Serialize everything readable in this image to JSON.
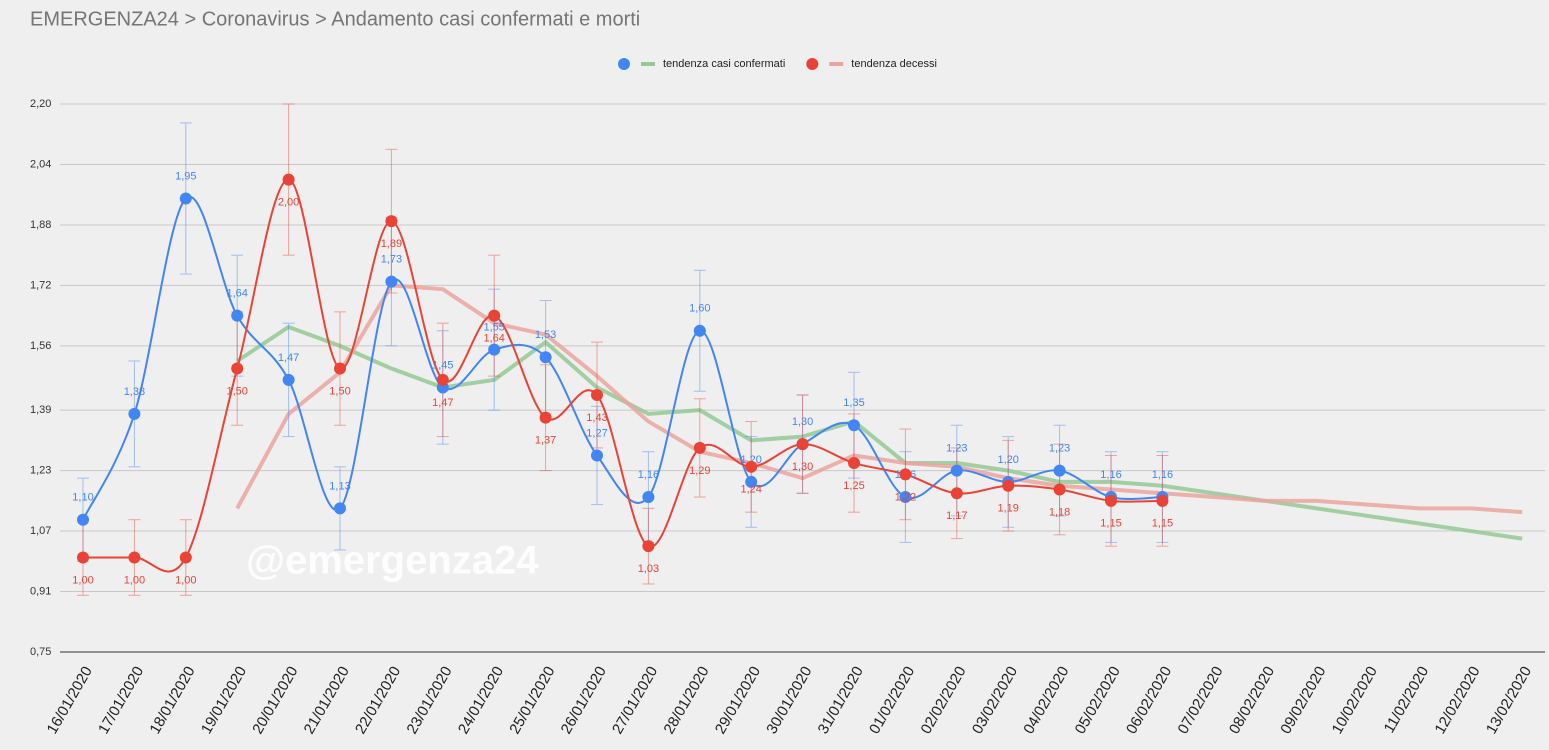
{
  "chart_data": {
    "type": "line",
    "title": "EMERGENZA24 > Coronavirus > Andamento casi confermati e morti",
    "watermark": "@emergenza24",
    "categories": [
      "16/01/2020",
      "17/01/2020",
      "18/01/2020",
      "19/01/2020",
      "20/01/2020",
      "21/01/2020",
      "22/01/2020",
      "23/01/2020",
      "24/01/2020",
      "25/01/2020",
      "26/01/2020",
      "27/01/2020",
      "28/01/2020",
      "29/01/2020",
      "30/01/2020",
      "31/01/2020",
      "01/02/2020",
      "02/02/2020",
      "03/02/2020",
      "04/02/2020",
      "05/02/2020",
      "06/02/2020",
      "07/02/2020",
      "08/02/2020",
      "09/02/2020",
      "10/02/2020",
      "11/02/2020",
      "12/02/2020",
      "13/02/2020"
    ],
    "ylim": [
      0.75,
      2.2
    ],
    "yticks": [
      {
        "value": 0.75,
        "label": "0,75"
      },
      {
        "value": 0.91,
        "label": "0,91"
      },
      {
        "value": 1.07,
        "label": "1,07"
      },
      {
        "value": 1.23,
        "label": "1,23"
      },
      {
        "value": 1.39,
        "label": "1,39"
      },
      {
        "value": 1.56,
        "label": "1,56"
      },
      {
        "value": 1.72,
        "label": "1,72"
      },
      {
        "value": 1.88,
        "label": "1,88"
      },
      {
        "value": 2.04,
        "label": "2,04"
      },
      {
        "value": 2.2,
        "label": "2,20"
      }
    ],
    "grid": true,
    "legend": "top",
    "series": [
      {
        "color": "#4285f4",
        "style": "points",
        "values": [
          1.1,
          1.38,
          1.95,
          1.64,
          1.47,
          1.13,
          1.73,
          1.45,
          1.55,
          1.53,
          1.27,
          1.16,
          1.6,
          1.2,
          1.3,
          1.35,
          1.16,
          1.23,
          1.2,
          1.23,
          1.16,
          1.16,
          null,
          null,
          null,
          null,
          null,
          null,
          null
        ],
        "value_labels": [
          "1,10",
          "1,38",
          "1,95",
          "1,64",
          "1,47",
          "1,13",
          "1,73",
          "1,45",
          "1,55",
          "1,53",
          "1,27",
          "1,16",
          "1,60",
          "1,20",
          "1,30",
          "1,35",
          "1,16",
          "1,23",
          "1,20",
          "1,23",
          "1,16",
          "1,16",
          null,
          null,
          null,
          null,
          null,
          null,
          null
        ],
        "errors": [
          0.11,
          0.14,
          0.2,
          0.16,
          0.15,
          0.11,
          0.17,
          0.15,
          0.16,
          0.15,
          0.13,
          0.12,
          0.16,
          0.12,
          0.13,
          0.14,
          0.12,
          0.12,
          0.12,
          0.12,
          0.12,
          0.12,
          null,
          null,
          null,
          null,
          null,
          null,
          null
        ]
      },
      {
        "name": "tendenza casi confermati",
        "color": "#93c993",
        "style": "trend",
        "values": [
          null,
          null,
          null,
          1.52,
          1.61,
          1.56,
          1.5,
          1.45,
          1.47,
          1.57,
          1.45,
          1.38,
          1.39,
          1.31,
          1.32,
          1.36,
          1.25,
          1.25,
          1.23,
          1.2,
          1.2,
          1.19,
          1.17,
          1.15,
          1.13,
          1.11,
          1.09,
          1.07,
          1.05
        ]
      },
      {
        "color": "#ea4335",
        "style": "points",
        "values": [
          1.0,
          1.0,
          1.0,
          1.5,
          2.0,
          1.5,
          1.89,
          1.47,
          1.64,
          1.37,
          1.43,
          1.03,
          1.29,
          1.24,
          1.3,
          1.25,
          1.22,
          1.17,
          1.19,
          1.18,
          1.15,
          1.15,
          null,
          null,
          null,
          null,
          null,
          null,
          null
        ],
        "value_labels": [
          "1,00",
          "1,00",
          "1,00",
          "1,50",
          "2,00",
          "1,50",
          "1,89",
          "1,47",
          "1,64",
          "1,37",
          "1,43",
          "1,03",
          "1,29",
          "1,24",
          "1,30",
          "1,25",
          "1,22",
          "1,17",
          "1,19",
          "1,18",
          "1,15",
          "1,15",
          null,
          null,
          null,
          null,
          null,
          null,
          null
        ],
        "errors": [
          0.1,
          0.1,
          0.1,
          0.15,
          0.2,
          0.15,
          0.19,
          0.15,
          0.16,
          0.14,
          0.14,
          0.1,
          0.13,
          0.12,
          0.13,
          0.13,
          0.12,
          0.12,
          0.12,
          0.12,
          0.12,
          0.12,
          null,
          null,
          null,
          null,
          null,
          null,
          null
        ]
      },
      {
        "name": "tendenza decessi",
        "color": "#eba49d",
        "style": "trend",
        "values": [
          null,
          null,
          null,
          1.13,
          1.38,
          1.49,
          1.72,
          1.71,
          1.62,
          1.59,
          1.48,
          1.36,
          1.28,
          1.25,
          1.21,
          1.27,
          1.25,
          1.24,
          1.21,
          1.19,
          1.18,
          1.17,
          1.16,
          1.15,
          1.15,
          1.14,
          1.13,
          1.13,
          1.12
        ]
      }
    ]
  }
}
